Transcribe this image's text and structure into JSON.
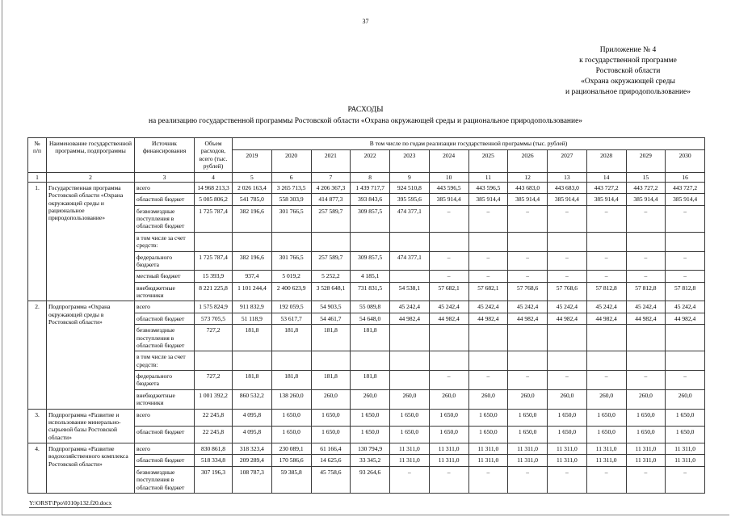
{
  "page": {
    "number": "37",
    "footer_path": "Y:\\ORST\\Ppo\\0310p132.f20.docx"
  },
  "appendix": {
    "lines": [
      "Приложение № 4",
      "к государственной программе",
      "Ростовской области",
      "«Охрана окружающей среды",
      "и рациональное природопользование»"
    ]
  },
  "title": {
    "heading": "РАСХОДЫ",
    "subheading": "на реализацию государственной программы Ростовской области «Охрана окружающей среды и рациональное природопользование»"
  },
  "table": {
    "header": {
      "num": "№\nп/п",
      "name": "Наименование государственной программы, подпрограммы",
      "source": "Источник финансирования",
      "volume": "Объем расходов, всего (тыс. рублей)",
      "years_span": "В том числе по годам реализации государственной программы (тыс. рублей)",
      "years": [
        "2019",
        "2020",
        "2021",
        "2022",
        "2023",
        "2024",
        "2025",
        "2026",
        "2027",
        "2028",
        "2029",
        "2030"
      ],
      "col_numbers": [
        "1",
        "2",
        "3",
        "4",
        "5",
        "6",
        "7",
        "8",
        "9",
        "10",
        "11",
        "12",
        "13",
        "14",
        "15",
        "16"
      ]
    },
    "groups": [
      {
        "num": "1.",
        "name": "Государственная программа Ростовской области «Охрана окружающей среды и рациональное природопользование»",
        "rows": [
          {
            "source": "всего",
            "total": "14 968 213,3",
            "values": [
              "2 026 163,4",
              "3 265 713,5",
              "4 206 367,3",
              "1 439 717,7",
              "924 510,8",
              "443 596,5",
              "443 596,5",
              "443 683,0",
              "443 683,0",
              "443 727,2",
              "443 727,2",
              "443 727,2"
            ]
          },
          {
            "source": "областной бюджет",
            "total": "5 005 806,2",
            "values": [
              "541 785,0",
              "558 303,9",
              "414 877,3",
              "393 843,6",
              "395 595,6",
              "385 914,4",
              "385 914,4",
              "385 914,4",
              "385 914,4",
              "385 914,4",
              "385 914,4",
              "385 914,4"
            ]
          },
          {
            "source": "безвозмездные поступления в областной бюджет",
            "total": "1 725 787,4",
            "values": [
              "382 196,6",
              "301 766,5",
              "257 589,7",
              "309 857,5",
              "474 377,1",
              "–",
              "–",
              "–",
              "–",
              "–",
              "–",
              "–"
            ]
          },
          {
            "source": "в том числе за счет средств:",
            "total": "",
            "values": [
              "",
              "",
              "",
              "",
              "",
              "",
              "",
              "",
              "",
              "",
              "",
              ""
            ]
          },
          {
            "source": "федерального бюджета",
            "total": "1 725 787,4",
            "values": [
              "382 196,6",
              "301 766,5",
              "257 589,7",
              "309 857,5",
              "474 377,1",
              "–",
              "–",
              "–",
              "–",
              "–",
              "–",
              "–"
            ]
          },
          {
            "source": "местный бюджет",
            "total": "15 393,9",
            "values": [
              "937,4",
              "5 019,2",
              "5 252,2",
              "4 185,1",
              "",
              "–",
              "–",
              "–",
              "–",
              "–",
              "–",
              "–"
            ]
          },
          {
            "source": "внебюджетные источники",
            "total": "8 221 225,8",
            "values": [
              "1 101 244,4",
              "2 400 623,9",
              "3 528 648,1",
              "731 831,5",
              "54 538,1",
              "57 682,1",
              "57 682,1",
              "57 768,6",
              "57 768,6",
              "57 812,8",
              "57 812,8",
              "57 812,8"
            ]
          }
        ]
      },
      {
        "num": "2.",
        "name": "Подпрограмма «Охрана окружающей среды в Ростовской области»",
        "rows": [
          {
            "source": "всего",
            "total": "1 575 824,9",
            "values": [
              "911 832,9",
              "192 059,5",
              "54 903,5",
              "55 089,8",
              "45 242,4",
              "45 242,4",
              "45 242,4",
              "45 242,4",
              "45 242,4",
              "45 242,4",
              "45 242,4",
              "45 242,4"
            ]
          },
          {
            "source": "областной бюджет",
            "total": "573 705,5",
            "values": [
              "51 118,9",
              "53 617,7",
              "54 461,7",
              "54 648,0",
              "44 982,4",
              "44 982,4",
              "44 982,4",
              "44 982,4",
              "44 982,4",
              "44 982,4",
              "44 982,4",
              "44 982,4"
            ]
          },
          {
            "source": "безвозмездные поступления в областной бюджет",
            "total": "727,2",
            "values": [
              "181,8",
              "181,8",
              "181,8",
              "181,8",
              "",
              "",
              "",
              "",
              "",
              "",
              "",
              ""
            ]
          },
          {
            "source": "в том числе за счет средств:",
            "total": "",
            "values": [
              "",
              "",
              "",
              "",
              "",
              "",
              "",
              "",
              "",
              "",
              "",
              ""
            ]
          },
          {
            "source": "федерального бюджета",
            "total": "727,2",
            "values": [
              "181,8",
              "181,8",
              "181,8",
              "181,8",
              "",
              "–",
              "–",
              "–",
              "–",
              "–",
              "–",
              "–"
            ]
          },
          {
            "source": "внебюджетные источники",
            "total": "1 001 392,2",
            "values": [
              "860 532,2",
              "138 260,0",
              "260,0",
              "260,0",
              "260,0",
              "260,0",
              "260,0",
              "260,0",
              "260,0",
              "260,0",
              "260,0",
              "260,0"
            ]
          }
        ]
      },
      {
        "num": "3.",
        "name": "Подпрограмма «Развитие и использование минерально-сырьевой базы Ростовской области»",
        "rows": [
          {
            "source": "всего",
            "total": "22 245,8",
            "values": [
              "4 095,8",
              "1 650,0",
              "1 650,0",
              "1 650,0",
              "1 650,0",
              "1 650,0",
              "1 650,0",
              "1 650,0",
              "1 650,0",
              "1 650,0",
              "1 650,0",
              "1 650,0"
            ]
          },
          {
            "source": "областной бюджет",
            "total": "22 245,8",
            "values": [
              "4 095,8",
              "1 650,0",
              "1 650,0",
              "1 650,0",
              "1 650,0",
              "1 650,0",
              "1 650,0",
              "1 650,0",
              "1 650,0",
              "1 650,0",
              "1 650,0",
              "1 650,0"
            ]
          }
        ]
      },
      {
        "num": "4.",
        "name": "Подпрограмма «Развитие водохозяйственного комплекса Ростовской области»",
        "rows": [
          {
            "source": "всего",
            "total": "830 861,8",
            "values": [
              "318 323,4",
              "230 089,1",
              "61 166,4",
              "130 794,9",
              "11 311,0",
              "11 311,0",
              "11 311,0",
              "11 311,0",
              "11 311,0",
              "11 311,0",
              "11 311,0",
              "11 311,0"
            ]
          },
          {
            "source": "областной бюджет",
            "total": "518 334,8",
            "values": [
              "209 289,4",
              "170 586,6",
              "14 625,6",
              "33 345,2",
              "11 311,0",
              "11 311,0",
              "11 311,0",
              "11 311,0",
              "11 311,0",
              "11 311,0",
              "11 311,0",
              "11 311,0"
            ]
          },
          {
            "source": "безвозмездные поступления в областной бюджет",
            "total": "307 196,3",
            "values": [
              "108 787,3",
              "59 385,8",
              "45 758,6",
              "93 264,6",
              "–",
              "–",
              "–",
              "–",
              "–",
              "–",
              "–",
              "–"
            ]
          }
        ]
      }
    ]
  }
}
